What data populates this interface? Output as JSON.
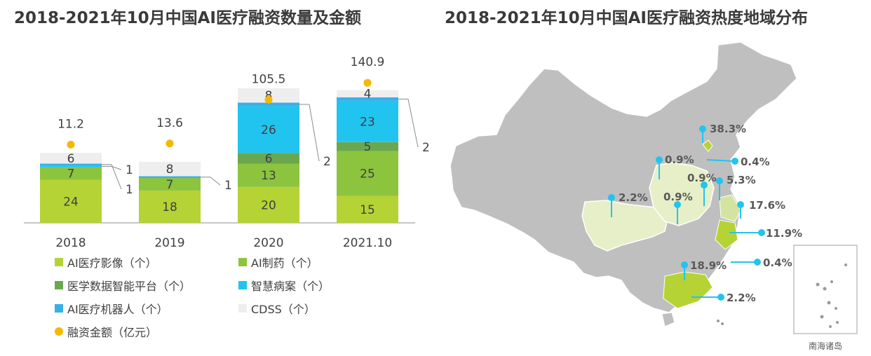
{
  "titles": {
    "left": "2018-2021年10月中国AI医疗融资数量及金额",
    "right": "2018-2021年10月中国AI医疗融资热度地域分布"
  },
  "chart_data": [
    {
      "type": "bar",
      "stacked": true,
      "categories": [
        "2018",
        "2019",
        "2020",
        "2021.10"
      ],
      "series": [
        {
          "name": "AI医疗影像（个）",
          "color": "#b5d334",
          "values": [
            24,
            18,
            20,
            15
          ]
        },
        {
          "name": "AI制药（个）",
          "color": "#8cc43e",
          "values": [
            7,
            7,
            13,
            25
          ]
        },
        {
          "name": "医学数据智能平台（个）",
          "color": "#6aa84f",
          "values": [
            0,
            0,
            6,
            5
          ]
        },
        {
          "name": "智慧病案（个）",
          "color": "#21c4ef",
          "values": [
            1,
            0,
            26,
            23
          ]
        },
        {
          "name": "AI医疗机器人（个）",
          "color": "#3ab0e8",
          "values": [
            1,
            1,
            2,
            2
          ]
        },
        {
          "name": "CDSS（个）",
          "color": "#eeeeee",
          "values": [
            6,
            8,
            8,
            4
          ]
        }
      ],
      "line_series": {
        "name": "融资金额（亿元）",
        "color": "#f5b800",
        "values": [
          11.2,
          13.6,
          105.5,
          140.9
        ]
      },
      "callouts": [
        {
          "category": "2018",
          "label": "1"
        },
        {
          "category": "2018",
          "label": "1"
        },
        {
          "category": "2019",
          "label": "1"
        },
        {
          "category": "2020",
          "label": "2"
        },
        {
          "category": "2021.10",
          "label": "2"
        }
      ]
    },
    {
      "type": "map",
      "region": "China",
      "inset_label": "南海诸岛",
      "labels": [
        "38.3%",
        "0.9%",
        "0.4%",
        "0.9%",
        "5.3%",
        "2.2%",
        "0.9%",
        "17.6%",
        "11.9%",
        "18.9%",
        "0.4%",
        "2.2%"
      ],
      "colors": {
        "base": "#bfbfbf",
        "light": "#e6efc8",
        "mid": "#d4e4a0",
        "strong": "#b5d334",
        "pin": "#21c4ef",
        "label": "#595959"
      }
    }
  ]
}
